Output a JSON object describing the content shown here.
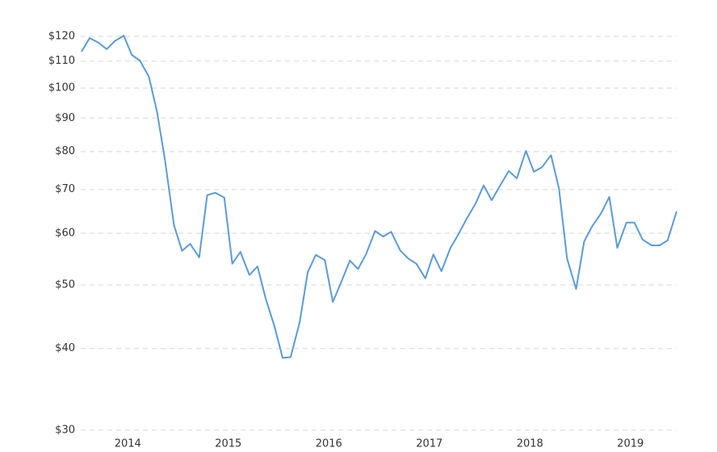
{
  "chart_data": {
    "type": "line",
    "log_scale_y": true,
    "grid": true,
    "x": [
      2013.54,
      2013.62,
      2013.71,
      2013.79,
      2013.87,
      2013.96,
      2014.04,
      2014.12,
      2014.21,
      2014.29,
      2014.37,
      2014.46,
      2014.54,
      2014.62,
      2014.71,
      2014.79,
      2014.87,
      2014.96,
      2015.04,
      2015.12,
      2015.21,
      2015.29,
      2015.37,
      2015.46,
      2015.54,
      2015.62,
      2015.71,
      2015.79,
      2015.87,
      2015.96,
      2016.04,
      2016.12,
      2016.21,
      2016.29,
      2016.37,
      2016.46,
      2016.54,
      2016.62,
      2016.71,
      2016.79,
      2016.87,
      2016.96,
      2017.04,
      2017.12,
      2017.21,
      2017.29,
      2017.37,
      2017.46,
      2017.54,
      2017.62,
      2017.71,
      2017.79,
      2017.87,
      2017.96,
      2018.04,
      2018.12,
      2018.21,
      2018.29,
      2018.37,
      2018.46,
      2018.54,
      2018.62,
      2018.71,
      2018.79,
      2018.87,
      2018.96,
      2019.04,
      2019.12,
      2019.21,
      2019.29,
      2019.37,
      2019.46
    ],
    "series": [
      {
        "color": "#5b9bd5",
        "values": [
          113.7,
          119.3,
          117.3,
          114.7,
          118.0,
          120.3,
          112.4,
          110.2,
          104.1,
          92.1,
          77.7,
          61.7,
          56.4,
          57.8,
          55.1,
          68.6,
          69.2,
          68.0,
          53.9,
          56.2,
          51.8,
          53.4,
          47.8,
          43.2,
          38.7,
          38.8,
          43.9,
          52.3,
          55.6,
          54.6,
          47.1,
          50.4,
          54.5,
          52.9,
          55.7,
          60.5,
          59.3,
          60.3,
          56.5,
          54.9,
          53.9,
          51.2,
          55.7,
          52.5,
          57.0,
          59.8,
          63.1,
          66.6,
          71.0,
          67.4,
          71.2,
          74.7,
          72.8,
          80.2,
          74.5,
          75.7,
          79.0,
          70.2,
          54.9,
          49.3,
          58.3,
          61.5,
          64.4,
          68.2,
          57.0,
          62.3,
          62.3,
          58.7,
          57.5,
          57.5,
          58.5,
          64.8
        ]
      }
    ],
    "xlim": [
      2013.54,
      2019.46
    ],
    "xticks": [
      2014,
      2015,
      2016,
      2017,
      2018,
      2019
    ],
    "ylim": [
      30,
      120
    ],
    "yticks": [
      {
        "value": 30,
        "label": "$30"
      },
      {
        "value": 40,
        "label": "$40"
      },
      {
        "value": 50,
        "label": "$50"
      },
      {
        "value": 60,
        "label": "$60"
      },
      {
        "value": 70,
        "label": "$70"
      },
      {
        "value": 80,
        "label": "$80"
      },
      {
        "value": 90,
        "label": "$90"
      },
      {
        "value": 100,
        "label": "$100"
      },
      {
        "value": 110,
        "label": "$110"
      },
      {
        "value": 120,
        "label": "$120"
      }
    ]
  }
}
